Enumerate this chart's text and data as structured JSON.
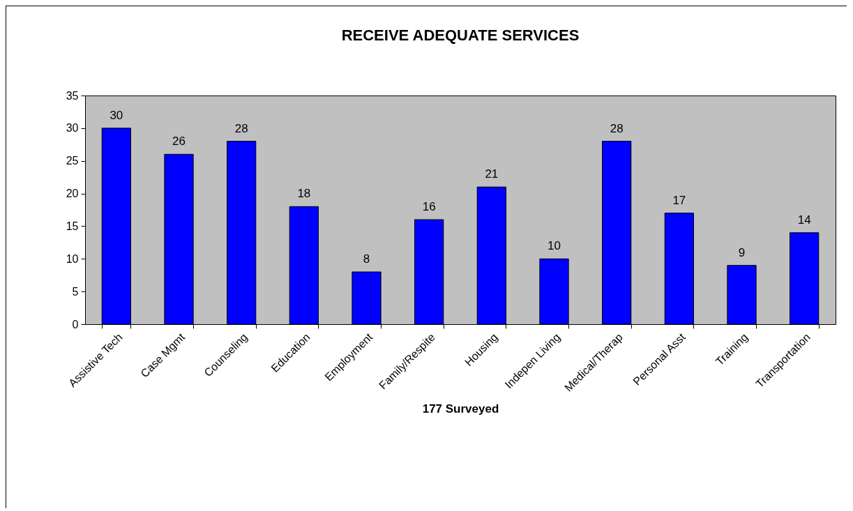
{
  "chart_data": {
    "type": "bar",
    "title": "RECEIVE ADEQUATE SERVICES",
    "xlabel": "177 Surveyed",
    "categories": [
      "Assistive Tech",
      "Case Mgmt",
      "Counseling",
      "Education",
      "Employment",
      "Family/Respite",
      "Housing",
      "Indepen Living",
      "Medical/Therap",
      "Personal Asst",
      "Training",
      "Transportation"
    ],
    "values": [
      30,
      26,
      28,
      18,
      8,
      16,
      21,
      10,
      28,
      17,
      9,
      14
    ],
    "color": "#0000ff",
    "ylim": [
      0,
      35
    ],
    "yticks": [
      0,
      5,
      10,
      15,
      20,
      25,
      30,
      35
    ],
    "data_labels": true
  }
}
